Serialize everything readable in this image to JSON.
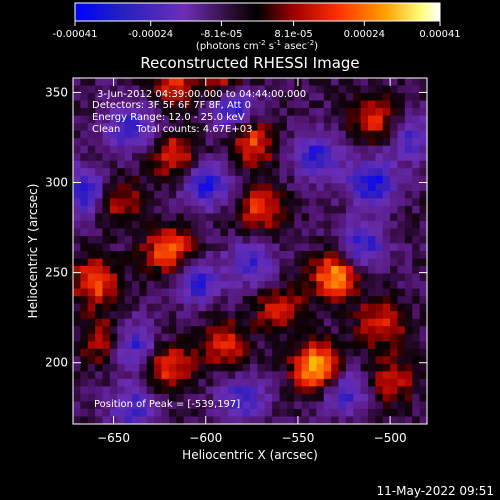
{
  "colorbar": {
    "tick_labels": [
      "-0.00041",
      "-0.00024",
      "-8.1e-05",
      "8.1e-05",
      "0.00024",
      "0.00041"
    ],
    "tick_values": [
      -0.00041,
      -0.00024,
      -8.1e-05,
      8.1e-05,
      0.00024,
      0.00041
    ],
    "range": [
      -0.00041,
      0.00041
    ],
    "units_main": "(photons cm",
    "units_sup1": "-2",
    "units_mid1": " s",
    "units_sup2": "-1",
    "units_mid2": " asec",
    "units_sup3": "-2",
    "units_end": ")"
  },
  "chart_data": {
    "type": "heatmap",
    "title": "Reconstructed RHESSI Image",
    "xlabel": "Heliocentric X (arcsec)",
    "ylabel": "Heliocentric Y (arcsec)",
    "xlim": [
      -672,
      -480
    ],
    "ylim": [
      166,
      358
    ],
    "x_ticks": [
      -650,
      -600,
      -550,
      -500
    ],
    "y_ticks": [
      200,
      250,
      300,
      350
    ],
    "x_tick_labels": [
      "−650",
      "−600",
      "−550",
      "−500"
    ],
    "y_tick_labels": [
      "200",
      "250",
      "300",
      "350"
    ],
    "annotations": [
      "3-Jun-2012 04:39:00.000 to 04:44:00.000",
      "Detectors: 3F 5F 6F 7F 8F, Att 0",
      "Energy Range: 12.0 - 25.0 keV",
      "Clean     Total counts: 4.67E+03"
    ],
    "peak_label": "Position of Peak = [-539,197]",
    "peak_position": [
      -539,
      197
    ],
    "colormap": [
      "#0000ff",
      "#3b1f9e",
      "#6e2db8",
      "#2a0a2a",
      "#000000",
      "#a00000",
      "#ff3000",
      "#ffa000",
      "#ffff80",
      "#ffffff"
    ],
    "hotspots": [
      {
        "x": -539,
        "y": 197,
        "v": 1.0
      },
      {
        "x": -530,
        "y": 248,
        "v": 0.85
      },
      {
        "x": -620,
        "y": 262,
        "v": 0.75
      },
      {
        "x": -660,
        "y": 245,
        "v": 0.7
      },
      {
        "x": -570,
        "y": 285,
        "v": 0.6
      },
      {
        "x": -575,
        "y": 323,
        "v": 0.65
      },
      {
        "x": -617,
        "y": 315,
        "v": 0.6
      },
      {
        "x": -508,
        "y": 335,
        "v": 0.6
      },
      {
        "x": -618,
        "y": 355,
        "v": 0.5
      },
      {
        "x": -592,
        "y": 360,
        "v": 0.55
      },
      {
        "x": -655,
        "y": 212,
        "v": 0.55
      },
      {
        "x": -620,
        "y": 198,
        "v": 0.6
      },
      {
        "x": -590,
        "y": 210,
        "v": 0.55
      },
      {
        "x": -505,
        "y": 222,
        "v": 0.55
      },
      {
        "x": -500,
        "y": 190,
        "v": 0.5
      },
      {
        "x": -560,
        "y": 230,
        "v": 0.5
      },
      {
        "x": -648,
        "y": 290,
        "v": 0.5
      }
    ],
    "coldspots": [
      {
        "x": -665,
        "y": 295,
        "v": -0.7
      },
      {
        "x": -640,
        "y": 330,
        "v": -0.6
      },
      {
        "x": -600,
        "y": 300,
        "v": -0.7
      },
      {
        "x": -585,
        "y": 340,
        "v": -0.6
      },
      {
        "x": -540,
        "y": 315,
        "v": -0.6
      },
      {
        "x": -510,
        "y": 300,
        "v": -0.7
      },
      {
        "x": -515,
        "y": 265,
        "v": -0.6
      },
      {
        "x": -605,
        "y": 245,
        "v": -0.6
      },
      {
        "x": -640,
        "y": 210,
        "v": -0.65
      },
      {
        "x": -575,
        "y": 255,
        "v": -0.5
      },
      {
        "x": -525,
        "y": 185,
        "v": -0.6
      },
      {
        "x": -490,
        "y": 325,
        "v": -0.5
      },
      {
        "x": -640,
        "y": 175,
        "v": -0.5
      },
      {
        "x": -580,
        "y": 180,
        "v": -0.5
      }
    ]
  },
  "footer": {
    "timestamp": "11-May-2022 09:51"
  }
}
